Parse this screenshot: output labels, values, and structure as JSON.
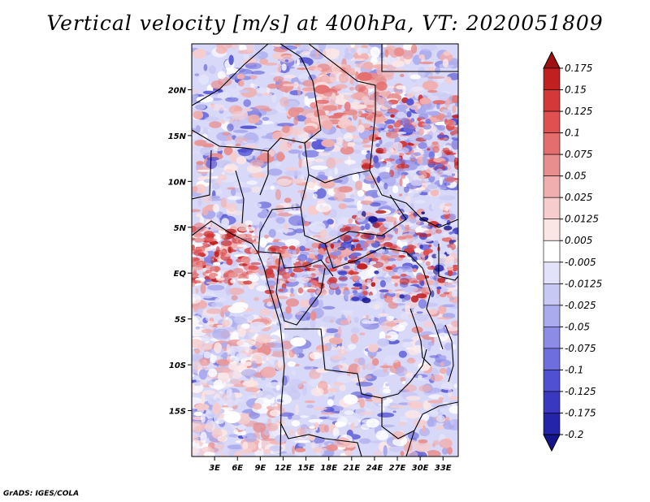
{
  "title": "Vertical velocity [m/s] at 400hPa, VT: 2020051809",
  "credit": "GrADS: IGES/COLA",
  "map": {
    "lon_range": [
      0,
      35
    ],
    "lat_range": [
      -20,
      25
    ],
    "lat_ticks": [
      {
        "value": 20,
        "label": "20N"
      },
      {
        "value": 15,
        "label": "15N"
      },
      {
        "value": 10,
        "label": "10N"
      },
      {
        "value": 5,
        "label": "5N"
      },
      {
        "value": 0,
        "label": "EQ"
      },
      {
        "value": -5,
        "label": "5S"
      },
      {
        "value": -10,
        "label": "10S"
      },
      {
        "value": -15,
        "label": "15S"
      }
    ],
    "lon_ticks": [
      {
        "value": 3,
        "label": "3E"
      },
      {
        "value": 6,
        "label": "6E"
      },
      {
        "value": 9,
        "label": "9E"
      },
      {
        "value": 12,
        "label": "12E"
      },
      {
        "value": 15,
        "label": "15E"
      },
      {
        "value": 18,
        "label": "18E"
      },
      {
        "value": 21,
        "label": "21E"
      },
      {
        "value": 24,
        "label": "24E"
      },
      {
        "value": 27,
        "label": "27E"
      },
      {
        "value": 30,
        "label": "30E"
      },
      {
        "value": 33,
        "label": "33E"
      }
    ]
  },
  "colorbar": {
    "labels": [
      "0.175",
      "0.15",
      "0.125",
      "0.1",
      "0.075",
      "0.05",
      "0.025",
      "0.0125",
      "0.005",
      "-0.005",
      "-0.0125",
      "-0.025",
      "-0.05",
      "-0.075",
      "-0.1",
      "-0.125",
      "-0.175",
      "-0.2"
    ],
    "colors": [
      "#a01010",
      "#c02020",
      "#d43838",
      "#e05050",
      "#e46e6e",
      "#e88e8e",
      "#f0aeae",
      "#f6cccc",
      "#fbe6e6",
      "#ffffff",
      "#e2e2fa",
      "#c8c8f4",
      "#aaaaee",
      "#8c8ce6",
      "#6e6ede",
      "#5050d2",
      "#3838c0",
      "#2424aa",
      "#14148c"
    ]
  }
}
